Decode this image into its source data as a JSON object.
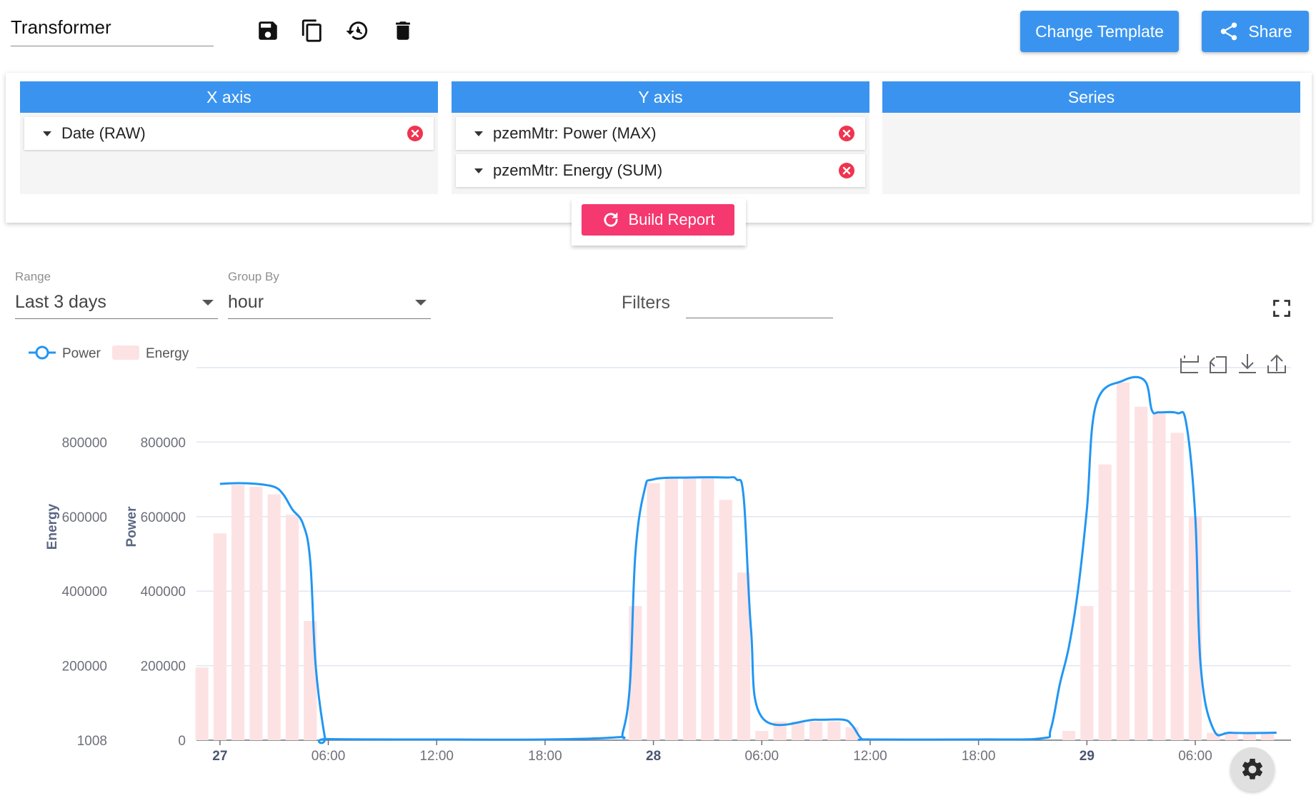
{
  "header": {
    "title": "Transformer",
    "change_template_label": "Change Template",
    "share_label": "Share",
    "icons": [
      "save-icon",
      "copy-icon",
      "restore-icon",
      "delete-icon",
      "share-icon"
    ]
  },
  "config": {
    "x_axis": {
      "title": "X axis",
      "items": [
        "Date (RAW)"
      ]
    },
    "y_axis": {
      "title": "Y axis",
      "items": [
        "pzemMtr: Power (MAX)",
        "pzemMtr: Energy (SUM)"
      ]
    },
    "series": {
      "title": "Series",
      "items": []
    },
    "build_label": "Build Report"
  },
  "controls": {
    "range_label": "Range",
    "range_value": "Last 3 days",
    "group_label": "Group By",
    "group_value": "hour",
    "filters_label": "Filters"
  },
  "colors": {
    "primary": "#3a94ef",
    "accent": "#f5386f",
    "power_line": "#2196f3",
    "energy_bar": "#fde2e4"
  },
  "chart_data": {
    "type": "line+bar",
    "legend": [
      "Power",
      "Energy"
    ],
    "legend_position": "top-left",
    "grid": true,
    "y_axes": [
      {
        "label": "Energy",
        "ticks": [
          "1008",
          "200000",
          "400000",
          "600000",
          "800000"
        ]
      },
      {
        "label": "Power",
        "ticks": [
          "0",
          "200000",
          "400000",
          "600000",
          "800000"
        ]
      }
    ],
    "ylim": [
      0,
      1000000
    ],
    "x_ticks": [
      {
        "h": 0,
        "label": "27",
        "bold": true
      },
      {
        "h": 6,
        "label": "06:00"
      },
      {
        "h": 12,
        "label": "12:00"
      },
      {
        "h": 18,
        "label": "18:00"
      },
      {
        "h": 24,
        "label": "28",
        "bold": true
      },
      {
        "h": 30,
        "label": "06:00"
      },
      {
        "h": 36,
        "label": "12:00"
      },
      {
        "h": 42,
        "label": "18:00"
      },
      {
        "h": 48,
        "label": "29",
        "bold": true
      },
      {
        "h": 54,
        "label": "06:00"
      }
    ],
    "x_range": [
      -1.3,
      59.3
    ],
    "series": [
      {
        "name": "Energy",
        "type": "bar",
        "x": [
          -1,
          0,
          1,
          2,
          3,
          4,
          5,
          23,
          24,
          25,
          26,
          27,
          28,
          29,
          30,
          31,
          32,
          33,
          34,
          35,
          47,
          48,
          49,
          50,
          51,
          52,
          53,
          54,
          55,
          56,
          57,
          58
        ],
        "values": [
          195000,
          555000,
          685000,
          680000,
          660000,
          605000,
          320000,
          360000,
          690000,
          702000,
          702000,
          703000,
          645000,
          450000,
          25000,
          50000,
          50000,
          50000,
          50000,
          35000,
          25000,
          360000,
          740000,
          960000,
          895000,
          880000,
          825000,
          600000,
          20000,
          20000,
          20000,
          20000
        ]
      },
      {
        "name": "Power",
        "type": "line",
        "x": [
          0,
          1,
          2,
          3,
          3.5,
          4,
          4.6,
          5,
          5.3,
          5.8,
          6,
          12,
          18,
          22,
          22.3,
          22.7,
          23,
          23.5,
          24,
          26,
          28,
          28.6,
          29,
          29.4,
          30,
          33,
          34.5,
          35,
          35.5,
          36,
          42,
          45.5,
          46,
          46.5,
          47,
          47.5,
          48,
          48.5,
          50,
          51.2,
          51.6,
          52,
          53,
          53.5,
          54,
          54.3,
          55,
          56,
          58.5
        ],
        "values": [
          688000,
          690000,
          688000,
          680000,
          660000,
          620000,
          580000,
          480000,
          200000,
          10000,
          3000,
          2000,
          2000,
          8000,
          20000,
          150000,
          500000,
          670000,
          700000,
          705000,
          705000,
          700000,
          650000,
          300000,
          62000,
          55000,
          55000,
          40000,
          5000,
          2000,
          2000,
          5000,
          30000,
          150000,
          250000,
          400000,
          620000,
          900000,
          965000,
          965000,
          885000,
          880000,
          878000,
          850000,
          600000,
          200000,
          30000,
          20000,
          20000
        ]
      }
    ]
  }
}
